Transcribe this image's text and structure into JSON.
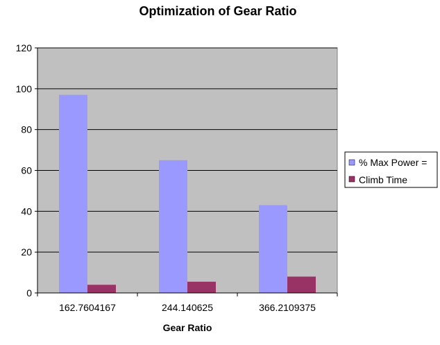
{
  "chart_data": {
    "type": "bar",
    "title": "Optimization of Gear Ratio",
    "xlabel": "Gear Ratio",
    "ylabel": "",
    "categories": [
      "162.7604167",
      "244.140625",
      "366.2109375"
    ],
    "series": [
      {
        "name": "% Max Power =",
        "values": [
          97,
          65,
          43
        ],
        "color": "#9999ff"
      },
      {
        "name": "Climb Time",
        "values": [
          4,
          5.5,
          8
        ],
        "color": "#993366"
      }
    ],
    "ylim": [
      0,
      120
    ],
    "yticks": [
      0,
      20,
      40,
      60,
      80,
      100,
      120
    ],
    "grid": true,
    "legend_position": "right",
    "colors": {
      "plot_background": "#c0c0c0",
      "gridline": "#000000",
      "legend_border": "#000000"
    }
  }
}
